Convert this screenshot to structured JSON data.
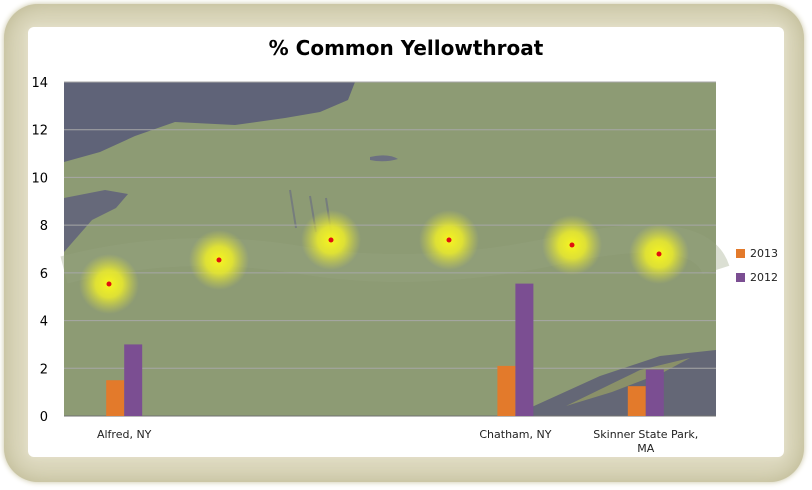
{
  "chart_data": {
    "type": "bar",
    "title": "% Common Yellowthroat",
    "categories": [
      "Alfred, NY",
      "",
      "",
      "Chatham, NY",
      "Skinner State Park,\nMA"
    ],
    "series": [
      {
        "name": "2013",
        "values": [
          1.5,
          null,
          null,
          2.1,
          1.25
        ],
        "color": "#e37a2b"
      },
      {
        "name": "2012",
        "values": [
          3.0,
          null,
          null,
          5.55,
          1.95
        ],
        "color": "#7b4e92"
      }
    ],
    "ylim": [
      0,
      14
    ],
    "yticks": [
      "0",
      "2",
      "4",
      "6",
      "8",
      "10",
      "12",
      "14"
    ],
    "grid": true,
    "legend": "right",
    "background": "satellite map of New York and Massachusetts with six glowing yellow site markers"
  }
}
